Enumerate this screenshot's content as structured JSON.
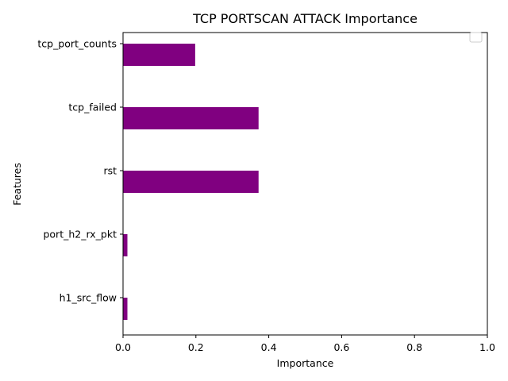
{
  "chart_data": {
    "type": "bar",
    "orientation": "horizontal",
    "title": "TCP PORTSCAN ATTACK Importance",
    "xlabel": "Importance",
    "ylabel": "Features",
    "categories": [
      "tcp_port_counts",
      "tcp_failed",
      "rst",
      "port_h2_rx_pkt",
      "h1_src_flow"
    ],
    "values": [
      0.198,
      0.372,
      0.372,
      0.012,
      0.012
    ],
    "xlim": [
      0,
      1.0
    ],
    "xticks": [
      "0.0",
      "0.2",
      "0.4",
      "0.6",
      "0.8",
      "1.0"
    ],
    "bar_color": "#800080",
    "grid": false,
    "legend": {
      "placement": "top-right",
      "entries": []
    }
  }
}
